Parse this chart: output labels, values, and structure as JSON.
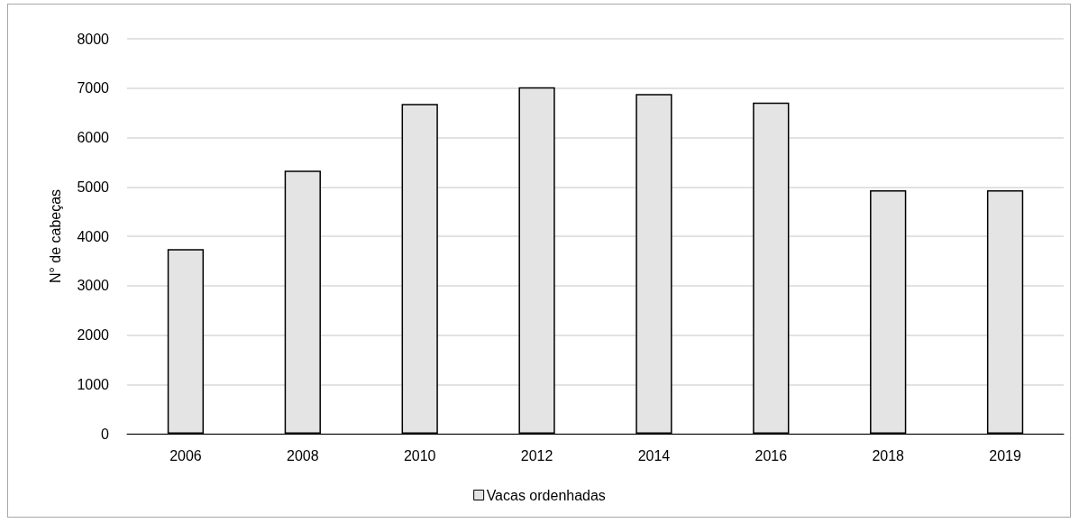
{
  "chart_data": {
    "type": "bar",
    "ylabel": "N° de cabeças",
    "categories": [
      "2006",
      "2008",
      "2010",
      "2012",
      "2014",
      "2016",
      "2018",
      "2019"
    ],
    "series": [
      {
        "name": "Vacas ordenhadas",
        "color": "#e4e4e4",
        "values": [
          3740,
          5330,
          6680,
          7020,
          6880,
          6710,
          4930,
          4930
        ]
      }
    ],
    "ylim": [
      0,
      8000
    ],
    "yticks": [
      0,
      1000,
      2000,
      3000,
      4000,
      5000,
      6000,
      7000,
      8000
    ],
    "grid": "y",
    "legend": "bottom"
  }
}
